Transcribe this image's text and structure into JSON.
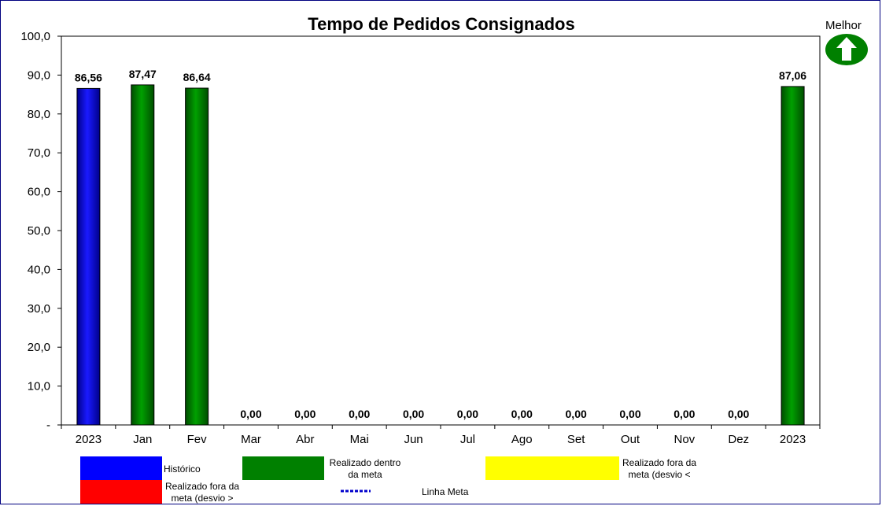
{
  "chart_data": {
    "type": "bar",
    "title": "Tempo de Pedidos Consignados",
    "categories": [
      "2023",
      "Jan",
      "Fev",
      "Mar",
      "Abr",
      "Mai",
      "Jun",
      "Jul",
      "Ago",
      "Set",
      "Out",
      "Nov",
      "Dez",
      "2023"
    ],
    "values": [
      86.56,
      87.47,
      86.64,
      0,
      0,
      0,
      0,
      0,
      0,
      0,
      0,
      0,
      0,
      87.06
    ],
    "value_labels": [
      "86,56",
      "87,47",
      "86,64",
      "0,00",
      "0,00",
      "0,00",
      "0,00",
      "0,00",
      "0,00",
      "0,00",
      "0,00",
      "0,00",
      "0,00",
      "87,06"
    ],
    "bar_colors": [
      "#0000FF",
      "#008000",
      "#008000",
      "#008000",
      "#008000",
      "#008000",
      "#008000",
      "#008000",
      "#008000",
      "#008000",
      "#008000",
      "#008000",
      "#008000",
      "#008000"
    ],
    "ylim": [
      0,
      100
    ],
    "yticks": [
      0,
      10,
      20,
      30,
      40,
      50,
      60,
      70,
      80,
      90,
      100
    ],
    "ytick_labels": [
      "-",
      "10,0",
      "20,0",
      "30,0",
      "40,0",
      "50,0",
      "60,0",
      "70,0",
      "80,0",
      "90,0",
      "100,0"
    ],
    "xlabel": "",
    "ylabel": "",
    "grid": false,
    "legend_position": "bottom"
  },
  "indicator": {
    "label": "Melhor",
    "icon": "arrow-up-icon",
    "color": "#008000"
  },
  "legend": {
    "historico": {
      "label": "Histórico",
      "color": "#0000FF"
    },
    "dentro": {
      "label": "Realizado dentro da meta",
      "color": "#008000"
    },
    "fora_amarelo": {
      "label": "Realizado fora da meta (desvio <",
      "color": "#FFFF00"
    },
    "fora_vermelho": {
      "label": "Realizado fora da meta (desvio >",
      "color": "#FF0000"
    },
    "linha_meta": {
      "label": "Linha Meta",
      "color": "#0000CC"
    }
  }
}
